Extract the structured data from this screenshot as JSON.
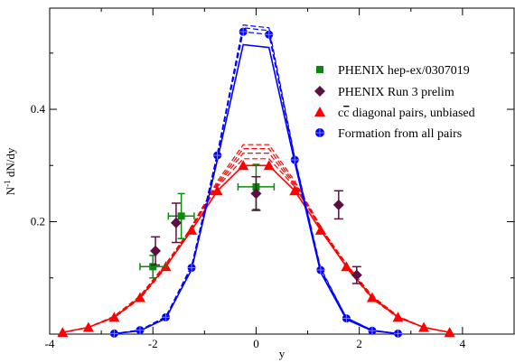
{
  "chart_data": {
    "type": "line",
    "xlabel": "y",
    "ylabel_main": "N",
    "ylabel_sup": "-1",
    "ylabel_rest": " dN/dy",
    "xlim": [
      -4,
      5
    ],
    "ylim": [
      0,
      0.58
    ],
    "x_ticks": [
      -4,
      -2,
      0,
      2,
      4
    ],
    "x_tick_labels": [
      "-4",
      "-2",
      "0",
      "2",
      "4"
    ],
    "y_ticks": [
      0.2,
      0.4
    ],
    "y_tick_labels": [
      "0.2",
      "0.4"
    ],
    "grid": false,
    "legend_position": "top-right",
    "legend": [
      {
        "label": "PHENIX hep-ex/0307019",
        "marker": "square",
        "color": "#0a8a0a"
      },
      {
        "label": "PHENIX Run 3 prelim",
        "marker": "diamond",
        "color": "#5a1040"
      },
      {
        "label_pre": "c",
        "label_over": "c",
        "label_post": " diagonal pairs, unbiased",
        "marker": "triangle",
        "color": "#ff0000"
      },
      {
        "label": "Formation from all pairs",
        "marker": "crossed-circle",
        "color": "#0000ff"
      }
    ],
    "phenix_2003": {
      "color": "#0a8a0a",
      "points": [
        {
          "x": -2.0,
          "y": 0.12,
          "xerr": 0.25,
          "yerr": 0.02
        },
        {
          "x": -1.45,
          "y": 0.21,
          "xerr": 0.25,
          "yerr": 0.04
        },
        {
          "x": 0.0,
          "y": 0.262,
          "xerr": 0.35,
          "yerr": 0.04
        }
      ]
    },
    "phenix_run3": {
      "color": "#5a1040",
      "points": [
        {
          "x": -1.95,
          "y": 0.148,
          "yerr": 0.025
        },
        {
          "x": -1.55,
          "y": 0.198,
          "yerr": 0.035
        },
        {
          "x": 0.0,
          "y": 0.25,
          "yerr": 0.03
        },
        {
          "x": 1.6,
          "y": 0.23,
          "yerr": 0.025
        },
        {
          "x": 1.95,
          "y": 0.105,
          "yerr": 0.015
        }
      ]
    },
    "red_curves": {
      "color": "#ff0000",
      "x": [
        -3.75,
        -3.25,
        -2.75,
        -2.25,
        -1.75,
        -1.25,
        -0.75,
        -0.25,
        0.25,
        0.75,
        1.25,
        1.75,
        2.25,
        2.75,
        3.25,
        3.75
      ],
      "solid": [
        0.003,
        0.012,
        0.03,
        0.065,
        0.12,
        0.185,
        0.255,
        0.3,
        0.3,
        0.255,
        0.185,
        0.12,
        0.065,
        0.03,
        0.012,
        0.003
      ],
      "markers_on": "solid",
      "dashed": [
        [
          0.003,
          0.012,
          0.032,
          0.068,
          0.125,
          0.19,
          0.262,
          0.312,
          0.312,
          0.262,
          0.19,
          0.125,
          0.068,
          0.032,
          0.012,
          0.003
        ],
        [
          0.003,
          0.012,
          0.031,
          0.066,
          0.122,
          0.188,
          0.265,
          0.322,
          0.322,
          0.265,
          0.188,
          0.122,
          0.066,
          0.031,
          0.012,
          0.003
        ],
        [
          0.003,
          0.012,
          0.03,
          0.064,
          0.12,
          0.19,
          0.268,
          0.33,
          0.33,
          0.268,
          0.19,
          0.12,
          0.064,
          0.03,
          0.012,
          0.003
        ],
        [
          0.003,
          0.012,
          0.029,
          0.063,
          0.118,
          0.192,
          0.272,
          0.337,
          0.337,
          0.272,
          0.192,
          0.118,
          0.063,
          0.029,
          0.012,
          0.003
        ]
      ]
    },
    "blue_curves": {
      "color": "#0000ff",
      "x": [
        -2.75,
        -2.25,
        -1.75,
        -1.25,
        -0.75,
        -0.25,
        0.25,
        0.75,
        1.25,
        1.75,
        2.25,
        2.75
      ],
      "solid": [
        0.001,
        0.006,
        0.028,
        0.115,
        0.31,
        0.515,
        0.51,
        0.305,
        0.11,
        0.026,
        0.006,
        0.001
      ],
      "markers_on": "dashed_top",
      "dashed": [
        [
          0.001,
          0.007,
          0.03,
          0.118,
          0.318,
          0.538,
          0.533,
          0.31,
          0.114,
          0.028,
          0.006,
          0.001
        ],
        [
          0.001,
          0.007,
          0.03,
          0.12,
          0.32,
          0.545,
          0.54,
          0.312,
          0.116,
          0.029,
          0.007,
          0.001
        ],
        [
          0.001,
          0.007,
          0.031,
          0.122,
          0.322,
          0.55,
          0.545,
          0.314,
          0.118,
          0.029,
          0.007,
          0.001
        ]
      ],
      "marker_points": [
        0.001,
        0.007,
        0.03,
        0.118,
        0.318,
        0.538,
        0.533,
        0.31,
        0.114,
        0.028,
        0.006,
        0.001
      ]
    }
  }
}
